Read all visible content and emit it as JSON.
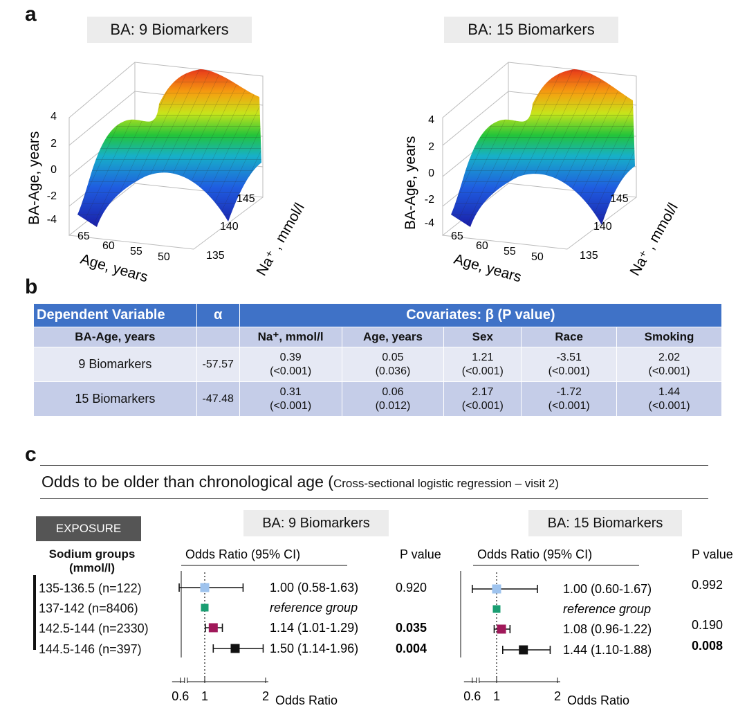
{
  "panels": {
    "a": "a",
    "b": "b",
    "c": "c"
  },
  "surface_plots": [
    {
      "title": "BA: 9 Biomarkers",
      "zlabel": "BA-Age, years",
      "zticks": [
        "4",
        "2",
        "0",
        "-2",
        "-4"
      ],
      "xlabel": "Age, years",
      "xticks": [
        "65",
        "60",
        "55",
        "50"
      ],
      "ylabel": "Na⁺ , mmol/l",
      "yticks": [
        "145",
        "140",
        "135"
      ]
    },
    {
      "title": "BA: 15 Biomarkers",
      "zlabel": "BA-Age, years",
      "zticks": [
        "4",
        "2",
        "0",
        "-2",
        "-4"
      ],
      "xlabel": "Age, years",
      "xticks": [
        "65",
        "60",
        "55",
        "50"
      ],
      "ylabel": "Na⁺ , mmol/l",
      "yticks": [
        "145",
        "140",
        "135"
      ]
    }
  ],
  "table": {
    "header_dependent": "Dependent Variable",
    "header_alpha": "α",
    "header_covariates": "Covariates: β (P value)",
    "sub_dependent": "BA-Age, years",
    "sub_cols": [
      "Na⁺, mmol/l",
      "Age, years",
      "Sex",
      "Race",
      "Smoking"
    ],
    "rows": [
      {
        "name": "9 Biomarkers",
        "alpha": "-57.57",
        "cells": [
          {
            "beta": "0.39",
            "p": "(<0.001)"
          },
          {
            "beta": "0.05",
            "p": "(0.036)"
          },
          {
            "beta": "1.21",
            "p": "(<0.001)"
          },
          {
            "beta": "-3.51",
            "p": "(<0.001)"
          },
          {
            "beta": "2.02",
            "p": "(<0.001)"
          }
        ]
      },
      {
        "name": "15 Biomarkers",
        "alpha": "-47.48",
        "cells": [
          {
            "beta": "0.31",
            "p": "(<0.001)"
          },
          {
            "beta": "0.06",
            "p": "(0.012)"
          },
          {
            "beta": "2.17",
            "p": "(<0.001)"
          },
          {
            "beta": "-1.72",
            "p": "(<0.001)"
          },
          {
            "beta": "1.44",
            "p": "(<0.001)"
          }
        ]
      }
    ]
  },
  "odds": {
    "title_main": "Odds to be older than chronological age (",
    "title_small": "Cross-sectional logistic regression – visit 2)",
    "exposure_label": "EXPOSURE",
    "groups_header_1": "Sodium groups",
    "groups_header_2": "(mmol/l)",
    "groups": [
      "135-136.5 (n=122)",
      "137-142 (n=8406)",
      "142.5-144 (n=2330)",
      "144.5-146 (n=397)"
    ]
  },
  "chart_data": [
    {
      "type": "forest",
      "title": "BA: 9 Biomarkers",
      "header_or": "Odds Ratio (95% CI)",
      "header_p": "P value",
      "xlabel": "Odds Ratio",
      "xticks": [
        "0.6",
        "1",
        "2"
      ],
      "reference_line": 1,
      "rows": [
        {
          "group": "135-136.5",
          "or": 1.0,
          "lo": 0.58,
          "hi": 1.63,
          "or_text": "1.00 (0.58-1.63)",
          "p": "0.920",
          "p_bold": false,
          "color": "#9ec3ee"
        },
        {
          "group": "137-142",
          "or": 1.0,
          "lo": null,
          "hi": null,
          "or_text": "reference group",
          "p": "",
          "p_bold": false,
          "color": "#1a9e72"
        },
        {
          "group": "142.5-144",
          "or": 1.14,
          "lo": 1.01,
          "hi": 1.29,
          "or_text": "1.14 (1.01-1.29)",
          "p": "0.035",
          "p_bold": true,
          "color": "#a0185a"
        },
        {
          "group": "144.5-146",
          "or": 1.5,
          "lo": 1.14,
          "hi": 1.96,
          "or_text": "1.50 (1.14-1.96)",
          "p": "0.004",
          "p_bold": true,
          "color": "#111111"
        }
      ]
    },
    {
      "type": "forest",
      "title": "BA: 15 Biomarkers",
      "header_or": "Odds Ratio (95% CI)",
      "header_p": "P value",
      "xlabel": "Odds Ratio",
      "xticks": [
        "0.6",
        "1",
        "2"
      ],
      "reference_line": 1,
      "rows": [
        {
          "group": "135-136.5",
          "or": 1.0,
          "lo": 0.6,
          "hi": 1.67,
          "or_text": "1.00 (0.60-1.67)",
          "p": "0.992",
          "p_bold": false,
          "color": "#9ec3ee"
        },
        {
          "group": "137-142",
          "or": 1.0,
          "lo": null,
          "hi": null,
          "or_text": "reference group",
          "p": "",
          "p_bold": false,
          "color": "#1a9e72"
        },
        {
          "group": "142.5-144",
          "or": 1.08,
          "lo": 0.96,
          "hi": 1.22,
          "or_text": "1.08 (0.96-1.22)",
          "p": "0.190",
          "p_bold": false,
          "color": "#a0185a"
        },
        {
          "group": "144.5-146",
          "or": 1.44,
          "lo": 1.1,
          "hi": 1.88,
          "or_text": "1.44 (1.10-1.88)",
          "p": "0.008",
          "p_bold": true,
          "color": "#111111"
        }
      ]
    }
  ]
}
